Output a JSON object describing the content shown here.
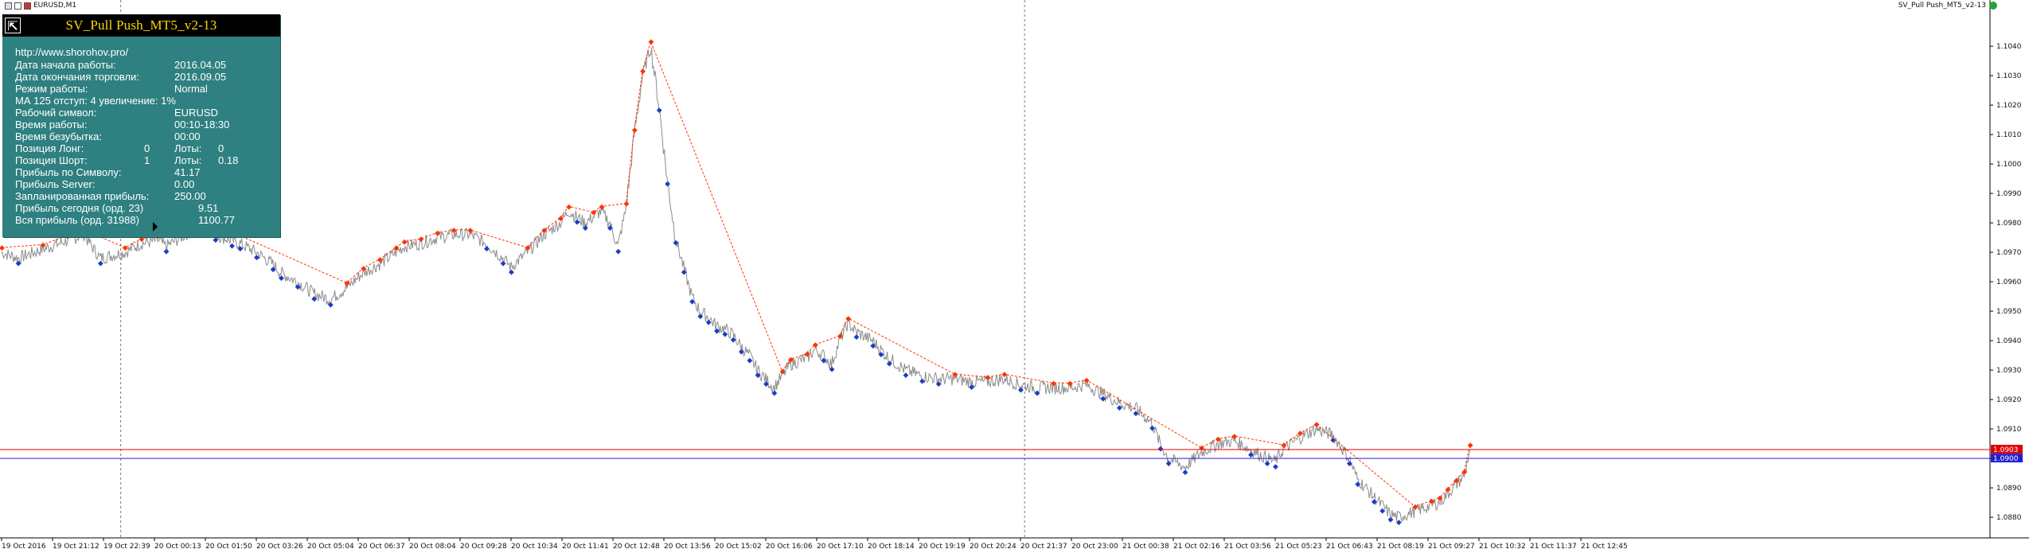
{
  "window": {
    "symbol_title": "EURUSD,M1",
    "ea_title": "SV_Pull Push_MT5_v2-13"
  },
  "panel": {
    "title": "SV_Pull Push_MT5_v2-13",
    "url": "http://www.shorohov.pro/",
    "rows": [
      {
        "label": "Дата начала работы:",
        "value": "2016.04.05"
      },
      {
        "label": "Дата окончания торговли:",
        "value": "2016.09.05"
      },
      {
        "label": "Режим работы:",
        "value": "Normal"
      },
      {
        "label": "МА 125 отступ: 4 увеличение: 1%",
        "value": ""
      },
      {
        "label": "Рабочий символ:",
        "value": "EURUSD"
      },
      {
        "label": "Время работы:",
        "value": "00:10-18:30"
      },
      {
        "label": "Время безубытка:",
        "value": "00:00"
      }
    ],
    "pos_long": {
      "label": "Позиция Лонг:",
      "count": "0",
      "lots_label": "Лоты:",
      "lots": "0"
    },
    "pos_short": {
      "label": "Позиция Шорт:",
      "count": "1",
      "lots_label": "Лоты:",
      "lots": "0.18"
    },
    "rows2": [
      {
        "label": "Прибыль по Символу:",
        "value": "41.17"
      },
      {
        "label": "Прибыль Server:",
        "value": "0.00"
      },
      {
        "label": "Запланированная прибыль:",
        "value": "250.00"
      },
      {
        "label": "Прибыль сегодня (орд. 23)",
        "value": "9.51"
      },
      {
        "label": "Вся прибыль (орд. 31988)",
        "value": "1100.77"
      }
    ]
  },
  "chart_data": {
    "type": "line",
    "symbol": "EURUSD",
    "timeframe": "M1",
    "ylim": [
      1.0873,
      1.1053
    ],
    "y_ticks": [
      "1.1040",
      "1.1030",
      "1.1020",
      "1.1010",
      "1.1000",
      "1.0990",
      "1.0980",
      "1.0970",
      "1.0960",
      "1.0950",
      "1.0940",
      "1.0930",
      "1.0920",
      "1.0910",
      "1.0900",
      "1.0890",
      "1.0880"
    ],
    "x_ticks": [
      "19 Oct 2016",
      "19 Oct 21:12",
      "19 Oct 22:39",
      "20 Oct 00:13",
      "20 Oct 01:50",
      "20 Oct 03:26",
      "20 Oct 05:04",
      "20 Oct 06:37",
      "20 Oct 08:04",
      "20 Oct 09:28",
      "20 Oct 10:34",
      "20 Oct 11:41",
      "20 Oct 12:48",
      "20 Oct 13:56",
      "20 Oct 15:02",
      "20 Oct 16:06",
      "20 Oct 17:10",
      "20 Oct 18:14",
      "20 Oct 19:19",
      "20 Oct 20:24",
      "20 Oct 21:37",
      "20 Oct 23:00",
      "21 Oct 00:38",
      "21 Oct 02:16",
      "21 Oct 03:56",
      "21 Oct 05:23",
      "21 Oct 06:43",
      "21 Oct 08:19",
      "21 Oct 09:27",
      "21 Oct 10:32",
      "21 Oct 11:37",
      "21 Oct 12:45"
    ],
    "price_path": [
      [
        0,
        1.097
      ],
      [
        2,
        1.0968
      ],
      [
        5,
        1.0971
      ],
      [
        8,
        1.0974
      ],
      [
        10,
        1.0976
      ],
      [
        12,
        1.0968
      ],
      [
        15,
        1.097
      ],
      [
        17,
        1.0973
      ],
      [
        19,
        1.0974
      ],
      [
        20,
        1.0972
      ],
      [
        23,
        1.0977
      ],
      [
        25,
        1.0979
      ],
      [
        26,
        1.0976
      ],
      [
        28,
        1.0974
      ],
      [
        29,
        1.0973
      ],
      [
        31,
        1.097
      ],
      [
        33,
        1.0966
      ],
      [
        34,
        1.0963
      ],
      [
        36,
        1.096
      ],
      [
        38,
        1.0956
      ],
      [
        40,
        1.0954
      ],
      [
        42,
        1.0958
      ],
      [
        44,
        1.0963
      ],
      [
        46,
        1.0966
      ],
      [
        48,
        1.097
      ],
      [
        49,
        1.0972
      ],
      [
        51,
        1.0973
      ],
      [
        53,
        1.0975
      ],
      [
        55,
        1.0976
      ],
      [
        57,
        1.0976
      ],
      [
        59,
        1.0973
      ],
      [
        61,
        1.0968
      ],
      [
        62,
        1.0965
      ],
      [
        64,
        1.097
      ],
      [
        66,
        1.0976
      ],
      [
        68,
        1.098
      ],
      [
        69,
        1.0984
      ],
      [
        70,
        1.0982
      ],
      [
        71,
        1.098
      ],
      [
        72,
        1.0982
      ],
      [
        73,
        1.0984
      ],
      [
        74,
        1.098
      ],
      [
        75,
        1.0972
      ],
      [
        76,
        1.0985
      ],
      [
        77,
        1.101
      ],
      [
        78,
        1.103
      ],
      [
        79,
        1.104
      ],
      [
        80,
        1.102
      ],
      [
        81,
        1.0995
      ],
      [
        82,
        1.0975
      ],
      [
        83,
        1.0965
      ],
      [
        84,
        1.0955
      ],
      [
        85,
        1.095
      ],
      [
        86,
        1.0948
      ],
      [
        87,
        1.0945
      ],
      [
        88,
        1.0944
      ],
      [
        89,
        1.0942
      ],
      [
        90,
        1.0938
      ],
      [
        91,
        1.0935
      ],
      [
        92,
        1.093
      ],
      [
        93,
        1.0927
      ],
      [
        94,
        1.0924
      ],
      [
        95,
        1.0928
      ],
      [
        96,
        1.0932
      ],
      [
        98,
        1.0934
      ],
      [
        99,
        1.0937
      ],
      [
        100,
        1.0935
      ],
      [
        101,
        1.0932
      ],
      [
        102,
        1.094
      ],
      [
        103,
        1.0946
      ],
      [
        104,
        1.0943
      ],
      [
        106,
        1.094
      ],
      [
        107,
        1.0937
      ],
      [
        108,
        1.0934
      ],
      [
        110,
        1.093
      ],
      [
        112,
        1.0928
      ],
      [
        114,
        1.0927
      ],
      [
        116,
        1.0927
      ],
      [
        118,
        1.0926
      ],
      [
        120,
        1.0926
      ],
      [
        122,
        1.0927
      ],
      [
        124,
        1.0925
      ],
      [
        126,
        1.0924
      ],
      [
        128,
        1.0924
      ],
      [
        130,
        1.0924
      ],
      [
        132,
        1.0925
      ],
      [
        134,
        1.0922
      ],
      [
        136,
        1.0919
      ],
      [
        138,
        1.0917
      ],
      [
        140,
        1.0912
      ],
      [
        141,
        1.0905
      ],
      [
        142,
        1.09
      ],
      [
        144,
        1.0897
      ],
      [
        146,
        1.0902
      ],
      [
        148,
        1.0905
      ],
      [
        150,
        1.0906
      ],
      [
        152,
        1.0903
      ],
      [
        154,
        1.09
      ],
      [
        155,
        1.0899
      ],
      [
        156,
        1.0903
      ],
      [
        158,
        1.0907
      ],
      [
        160,
        1.091
      ],
      [
        162,
        1.0908
      ],
      [
        164,
        1.09
      ],
      [
        165,
        1.0893
      ],
      [
        167,
        1.0887
      ],
      [
        168,
        1.0884
      ],
      [
        169,
        1.0881
      ],
      [
        170,
        1.088
      ],
      [
        172,
        1.0882
      ],
      [
        174,
        1.0884
      ],
      [
        175,
        1.0885
      ],
      [
        176,
        1.0888
      ],
      [
        177,
        1.0891
      ],
      [
        178,
        1.0894
      ],
      [
        178.7,
        1.0903
      ]
    ],
    "horizontal_lines": [
      {
        "price": 1.0903,
        "label": "1.0903",
        "color": "#e00000"
      },
      {
        "price": 1.09,
        "label": "1.0900",
        "color": "#2020d0"
      }
    ],
    "period_separators_at_x": [
      14.5,
      124.5
    ],
    "colors": {
      "price": "#8c8c8c",
      "sell": "#ff3300",
      "buy": "#1a3cc8",
      "trail": "#ff3300"
    }
  }
}
